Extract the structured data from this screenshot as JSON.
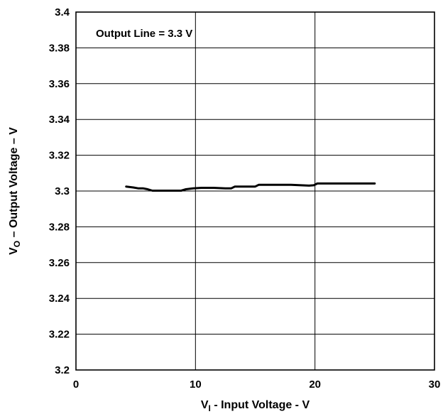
{
  "chart_data": {
    "type": "line",
    "annotation": "Output Line = 3.3 V",
    "xlabel": {
      "main": "V",
      "sub": "I",
      "rest": " - Input Voltage - V"
    },
    "ylabel": {
      "main": "V",
      "sub": "O",
      "rest": " – Output Voltage – V"
    },
    "xlim": [
      0,
      30
    ],
    "ylim": [
      3.2,
      3.4
    ],
    "xticks": [
      "0",
      "10",
      "20",
      "30"
    ],
    "yticks": [
      "3.2",
      "3.22",
      "3.24",
      "3.26",
      "3.28",
      "3.3",
      "3.32",
      "3.34",
      "3.36",
      "3.38",
      "3.4"
    ],
    "grid": true,
    "series": [
      {
        "x": [
          4.2,
          4.8,
          5.2,
          5.6,
          6.0,
          6.4,
          7.0,
          8.0,
          8.8,
          9.2,
          9.8,
          10.5,
          11.5,
          12.5,
          13.0,
          13.3,
          14.0,
          15.0,
          15.3,
          16.5,
          18.0,
          19.5,
          19.9,
          20.2,
          22.0,
          24.0,
          25.0
        ],
        "y": [
          3.3025,
          3.302,
          3.3015,
          3.3015,
          3.301,
          3.3002,
          3.3002,
          3.3002,
          3.3002,
          3.301,
          3.3015,
          3.3018,
          3.3018,
          3.3015,
          3.3015,
          3.3025,
          3.3025,
          3.3025,
          3.3035,
          3.3035,
          3.3035,
          3.303,
          3.3032,
          3.3042,
          3.3042,
          3.3042,
          3.3042
        ]
      }
    ]
  }
}
